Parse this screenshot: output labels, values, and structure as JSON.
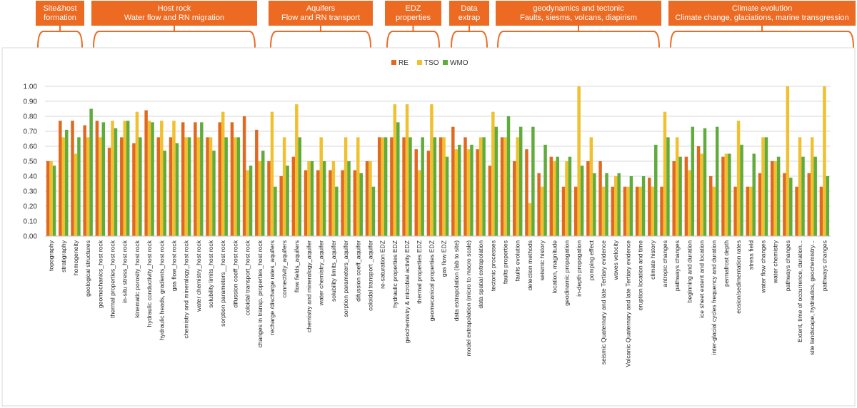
{
  "groups": [
    {
      "id": "site",
      "line1": "Site&host",
      "line2": "formation"
    },
    {
      "id": "host",
      "line1": "Host rock",
      "line2": "Water flow and RN migration"
    },
    {
      "id": "aquifers",
      "line1": "Aquifers",
      "line2": "Flow and RN transport"
    },
    {
      "id": "edz",
      "line1": "EDZ",
      "line2": "properties"
    },
    {
      "id": "data",
      "line1": "Data",
      "line2": "extrap"
    },
    {
      "id": "geodyn",
      "line1": "geodynamics and tectonic",
      "line2": "Faults, siesms, volcans, diapirism"
    },
    {
      "id": "climate",
      "line1": "Climate evolution",
      "line2": "Climate change, glaciations, marine transgression"
    }
  ],
  "chart_data": {
    "type": "bar",
    "title": "",
    "xlabel": "",
    "ylabel": "",
    "ylim": [
      0,
      1.0
    ],
    "yticks": [
      "0.00",
      "0.10",
      "0.20",
      "0.30",
      "0.40",
      "0.50",
      "0.60",
      "0.70",
      "0.80",
      "0.90",
      "1.00"
    ],
    "legend_position": "top",
    "colors": {
      "RE": "#e0691f",
      "TSO": "#f0c02e",
      "WMO": "#5fac3c"
    },
    "categories": [
      "topography",
      "stratigraphy",
      "homogeneity",
      "geological structures",
      "geomechanics_host rock",
      "thermal properties_host rock",
      "in-situ stress_host rock",
      "kinematic porosity_host rock",
      "hydraulic conductivity_host rock",
      "hydraulic heads, gradients_host rock",
      "gas flow_host rock",
      "chemistry and mineralogy_host rock",
      "water chemistry_host rock",
      "solubility limits_host rock",
      "sorption parameters__host rock",
      "difussion coeff_host rock",
      "coloidal transport_host rock",
      "changes in transp. properties_host rock",
      "recharge /discharge rates_aquifers",
      "connectivity_aquifers",
      "flow fields_aquifers",
      "chemistry and mineralogy_aquifer",
      "water chemistry_aquifer",
      "solubility limits_aquifer",
      "sorption parameters_aquifer",
      "difussion coeff_aquifer",
      "coloidal transport _aquifer",
      "re-saturation EDZ",
      "hydraulic properties EDZ",
      "geochemistry & microbial activity EDZ",
      "thermal properties EDZ",
      "geomecanical properties EDZ",
      "gas flow EDZ",
      "data extrapolation (lab to site)",
      "model extrapolation (micro to macro scale)",
      "data spatial extrapolation",
      "tectonic processes",
      "faults properties",
      "faults evolution",
      "detection methods",
      "seismic history",
      "location, magnitude",
      "geodinamic propagation",
      "in-depth propagation",
      "pomping effect",
      "seismic Quaternary and late Tertiary evidence",
      "waves velocity",
      "Volcanic Quaternary and late Tertiary evidence",
      "eruption location and time",
      "climate history",
      "antropic changes",
      "pathways changes",
      "beginning and duration",
      "ice sheet extent and location",
      "inter-glacial cycles frequency and duration",
      "permafrost depth",
      "eosion/sedimentation rates",
      "stress field",
      "water flow changes",
      "water chemistry",
      "pathways changes",
      "Extent, time of occurrence, duration...",
      "site landscape, hydraulics, geochemistry...",
      "pathways changes"
    ],
    "series": [
      {
        "name": "RE",
        "values": [
          0.5,
          0.77,
          0.77,
          0.74,
          0.77,
          0.59,
          0.66,
          0.62,
          0.84,
          0.66,
          0.66,
          0.76,
          0.76,
          0.66,
          0.76,
          0.76,
          0.8,
          0.71,
          0.5,
          0.4,
          0.53,
          0.44,
          0.44,
          0.44,
          0.44,
          0.44,
          0.5,
          0.66,
          0.66,
          0.66,
          0.58,
          0.57,
          0.66,
          0.73,
          0.66,
          0.58,
          0.47,
          0.66,
          0.5,
          0.58,
          0.42,
          0.53,
          0.33,
          0.33,
          0.5,
          0.5,
          0.33,
          0.33,
          0.33,
          0.39,
          0.33,
          0.5,
          0.53,
          0.6,
          0.4,
          0.53,
          0.33,
          0.33,
          0.42,
          0.5,
          0.42,
          0.33,
          0.42,
          0.33
        ]
      },
      {
        "name": "TSO",
        "values": [
          0.5,
          0.66,
          0.55,
          0.66,
          0.66,
          0.77,
          0.77,
          0.83,
          0.77,
          0.77,
          0.77,
          0.66,
          0.66,
          0.66,
          0.83,
          0.66,
          0.44,
          0.5,
          0.83,
          0.66,
          0.88,
          0.5,
          0.66,
          0.5,
          0.66,
          0.66,
          0.5,
          0.66,
          0.88,
          0.88,
          0.44,
          0.88,
          0.66,
          0.58,
          0.58,
          0.66,
          0.83,
          0.66,
          0.66,
          0.22,
          0.33,
          0.5,
          0.5,
          1.0,
          0.66,
          0.33,
          0.4,
          0.33,
          0.33,
          0.33,
          0.83,
          0.66,
          0.44,
          0.55,
          0.33,
          0.55,
          0.77,
          0.33,
          0.66,
          0.5,
          1.0,
          0.66,
          0.66,
          1.0
        ]
      },
      {
        "name": "WMO",
        "values": [
          0.47,
          0.71,
          0.66,
          0.85,
          0.76,
          0.72,
          0.77,
          0.66,
          0.76,
          0.57,
          0.62,
          0.66,
          0.76,
          0.57,
          0.66,
          0.66,
          0.47,
          0.57,
          0.33,
          0.47,
          0.66,
          0.5,
          0.5,
          0.33,
          0.5,
          0.42,
          0.33,
          0.66,
          0.76,
          0.66,
          0.66,
          0.66,
          0.53,
          0.61,
          0.61,
          0.66,
          0.73,
          0.8,
          0.73,
          0.73,
          0.61,
          0.53,
          0.53,
          0.47,
          0.42,
          0.42,
          0.42,
          0.4,
          0.4,
          0.61,
          0.66,
          0.53,
          0.73,
          0.72,
          0.73,
          0.55,
          0.61,
          0.55,
          0.66,
          0.53,
          0.39,
          0.53,
          0.53,
          0.4
        ]
      }
    ]
  }
}
